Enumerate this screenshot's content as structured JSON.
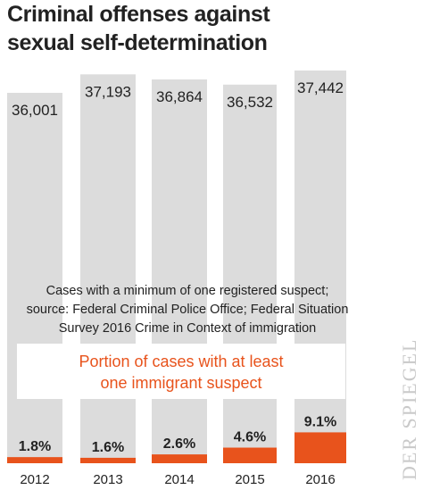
{
  "title": [
    "Criminal offenses against",
    "sexual self-determination"
  ],
  "note": [
    "Cases with a minimum of one registered suspect;",
    "source: Federal Criminal Police Office; Federal Situation",
    "Survey 2016 Crime in Context of immigration"
  ],
  "portion_label": [
    "Portion of cases with at least",
    "one immigrant suspect"
  ],
  "watermark": "DER SPIEGEL",
  "colors": {
    "total_bar": "#dcdcdc",
    "immigrant_bar": "#e8531c",
    "text": "#222222"
  },
  "chart_data": {
    "type": "bar",
    "categories": [
      "2012",
      "2013",
      "2014",
      "2015",
      "2016"
    ],
    "total_cases": {
      "values": [
        36001,
        37193,
        36864,
        36532,
        37442
      ],
      "labels": [
        "36,001",
        "37,193",
        "36,864",
        "36,532",
        "37,442"
      ]
    },
    "immigrant_share": {
      "values": [
        1.8,
        1.6,
        2.6,
        4.6,
        9.1
      ],
      "labels": [
        "1.8%",
        "1.6%",
        "2.6%",
        "4.6%",
        "9.1%"
      ]
    }
  }
}
